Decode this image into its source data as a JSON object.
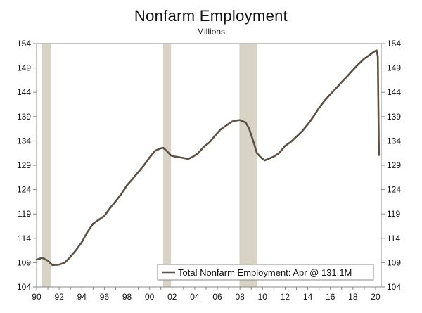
{
  "chart_data": {
    "type": "line",
    "title": "Nonfarm Employment",
    "subtitle": "Millions",
    "xlabel": "",
    "ylabel": "",
    "xlim": [
      1990,
      2020.5
    ],
    "ylim": [
      104,
      154
    ],
    "x_ticks": [
      1990,
      1992,
      1994,
      1996,
      1998,
      2000,
      2002,
      2004,
      2006,
      2008,
      2010,
      2012,
      2014,
      2016,
      2018,
      2020
    ],
    "x_tick_labels": [
      "90",
      "92",
      "94",
      "96",
      "98",
      "00",
      "02",
      "04",
      "06",
      "08",
      "10",
      "12",
      "14",
      "16",
      "18",
      "20"
    ],
    "y_ticks": [
      104,
      109,
      114,
      119,
      124,
      129,
      134,
      139,
      144,
      149,
      154
    ],
    "y_tick_labels": [
      "104",
      "109",
      "114",
      "119",
      "124",
      "129",
      "134",
      "139",
      "144",
      "149",
      "154"
    ],
    "recession_shading": [
      [
        1990.5,
        1991.25
      ],
      [
        2001.2,
        2001.9
      ],
      [
        2007.95,
        2009.5
      ]
    ],
    "grid": false,
    "legend_position": "bottom-right",
    "series": [
      {
        "name": "Total Nonfarm Employment: Apr @ 131.1M",
        "color": "#5a5044",
        "x": [
          1990.0,
          1990.5,
          1991.0,
          1991.4,
          1992.0,
          1992.5,
          1993.0,
          1993.5,
          1994.0,
          1994.5,
          1995.0,
          1995.5,
          1996.0,
          1996.5,
          1997.0,
          1997.5,
          1998.0,
          1998.5,
          1999.0,
          1999.5,
          2000.0,
          2000.5,
          2001.0,
          2001.2,
          2001.5,
          2001.9,
          2002.2,
          2002.5,
          2003.0,
          2003.4,
          2003.8,
          2004.3,
          2004.8,
          2005.3,
          2005.8,
          2006.3,
          2006.8,
          2007.3,
          2007.7,
          2008.0,
          2008.5,
          2008.8,
          2009.2,
          2009.5,
          2009.9,
          2010.2,
          2010.6,
          2011.0,
          2011.5,
          2012.0,
          2012.5,
          2013.0,
          2013.5,
          2014.0,
          2014.5,
          2015.0,
          2015.5,
          2016.0,
          2016.5,
          2017.0,
          2017.5,
          2018.0,
          2018.5,
          2019.0,
          2019.5,
          2019.9,
          2020.1,
          2020.2,
          2020.3
        ],
        "values": [
          109.6,
          110.0,
          109.4,
          108.5,
          108.6,
          109.0,
          110.2,
          111.6,
          113.2,
          115.3,
          117.0,
          117.8,
          118.6,
          120.2,
          121.6,
          123.1,
          124.9,
          126.2,
          127.6,
          129.0,
          130.6,
          132.0,
          132.5,
          132.6,
          132.0,
          131.0,
          130.8,
          130.7,
          130.5,
          130.3,
          130.7,
          131.5,
          132.8,
          133.7,
          135.1,
          136.4,
          137.2,
          138.0,
          138.2,
          138.3,
          137.8,
          136.6,
          133.8,
          131.5,
          130.5,
          130.0,
          130.4,
          130.8,
          131.6,
          133.0,
          133.8,
          134.9,
          136.0,
          137.4,
          139.0,
          140.8,
          142.3,
          143.6,
          144.8,
          146.1,
          147.3,
          148.6,
          149.8,
          150.9,
          151.7,
          152.4,
          152.6,
          151.3,
          131.1
        ]
      }
    ]
  }
}
